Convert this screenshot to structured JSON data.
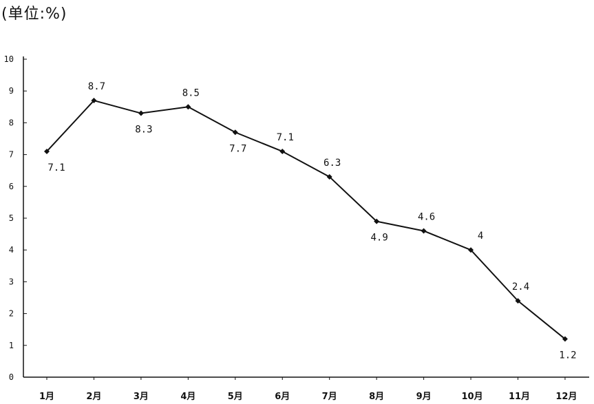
{
  "unit_label": "(单位:%)",
  "chart_data": {
    "type": "line",
    "title": "",
    "xlabel": "",
    "ylabel": "",
    "categories": [
      "1月",
      "2月",
      "3月",
      "4月",
      "5月",
      "6月",
      "7月",
      "8月",
      "9月",
      "10月",
      "11月",
      "12月"
    ],
    "series": [
      {
        "values": [
          7.1,
          8.7,
          8.3,
          8.5,
          7.7,
          7.1,
          6.3,
          4.9,
          4.6,
          4.0,
          2.4,
          1.2
        ]
      }
    ],
    "data_labels": [
      "7.1",
      "8.7",
      "8.3",
      "8.5",
      "7.7",
      "7.1",
      "6.3",
      "4.9",
      "4.6",
      "4",
      "2.4",
      "1.2"
    ],
    "label_positions": [
      "below",
      "above",
      "below",
      "above",
      "below",
      "above",
      "above",
      "below",
      "above",
      "above",
      "above",
      "below"
    ],
    "ylim": [
      0,
      10
    ],
    "yticks": [
      0,
      1,
      2,
      3,
      4,
      5,
      6,
      7,
      8,
      9,
      10
    ],
    "grid": false,
    "line_color": "#111111"
  }
}
